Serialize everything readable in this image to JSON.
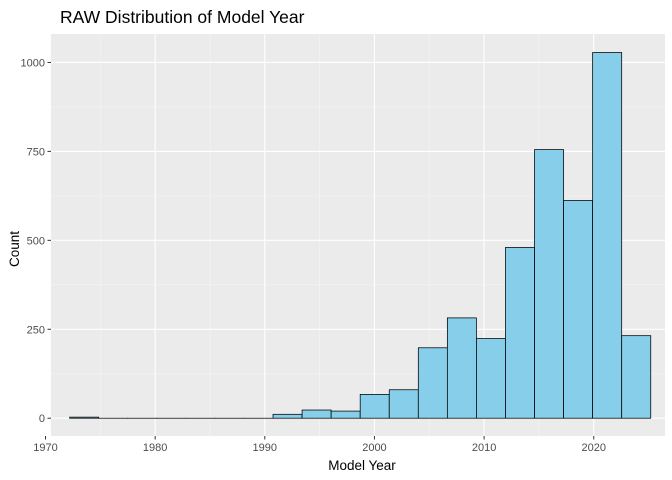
{
  "chart_data": {
    "type": "bar",
    "title": "RAW Distribution of Model Year",
    "xlabel": "Model Year",
    "ylabel": "Count",
    "xlim": [
      1970.5,
      2026.5
    ],
    "ylim": [
      -50,
      1080
    ],
    "x_ticks": [
      1970,
      1980,
      1990,
      2000,
      2010,
      2020
    ],
    "y_ticks": [
      0,
      250,
      500,
      750,
      1000
    ],
    "bin_width": 2.65,
    "bins": [
      {
        "start": 1972.2,
        "end": 1974.85,
        "count": 3
      },
      {
        "start": 1974.85,
        "end": 1977.5,
        "count": 0
      },
      {
        "start": 1977.5,
        "end": 1980.15,
        "count": 0
      },
      {
        "start": 1980.15,
        "end": 1982.8,
        "count": 0
      },
      {
        "start": 1982.8,
        "end": 1985.45,
        "count": 0
      },
      {
        "start": 1985.45,
        "end": 1988.1,
        "count": 0
      },
      {
        "start": 1988.1,
        "end": 1990.75,
        "count": 0
      },
      {
        "start": 1990.75,
        "end": 1993.4,
        "count": 11
      },
      {
        "start": 1993.4,
        "end": 1996.05,
        "count": 23
      },
      {
        "start": 1996.05,
        "end": 1998.7,
        "count": 20
      },
      {
        "start": 1998.7,
        "end": 2001.35,
        "count": 67
      },
      {
        "start": 2001.35,
        "end": 2004.0,
        "count": 80
      },
      {
        "start": 2004.0,
        "end": 2006.65,
        "count": 198
      },
      {
        "start": 2006.65,
        "end": 2009.3,
        "count": 282
      },
      {
        "start": 2009.3,
        "end": 2011.95,
        "count": 224
      },
      {
        "start": 2011.95,
        "end": 2014.6,
        "count": 480
      },
      {
        "start": 2014.6,
        "end": 2017.25,
        "count": 755
      },
      {
        "start": 2017.25,
        "end": 2019.9,
        "count": 612
      },
      {
        "start": 2019.9,
        "end": 2022.55,
        "count": 1028
      },
      {
        "start": 2022.55,
        "end": 2025.2,
        "count": 232
      }
    ],
    "grid": true,
    "colors": {
      "bar_fill": "#87CEEB",
      "bar_stroke": "#000000",
      "panel_bg": "#EBEBEB",
      "grid_major": "#FFFFFF",
      "grid_minor": "#F5F5F5",
      "tick_text": "#4D4D4D",
      "tick_mark": "#333333"
    }
  }
}
